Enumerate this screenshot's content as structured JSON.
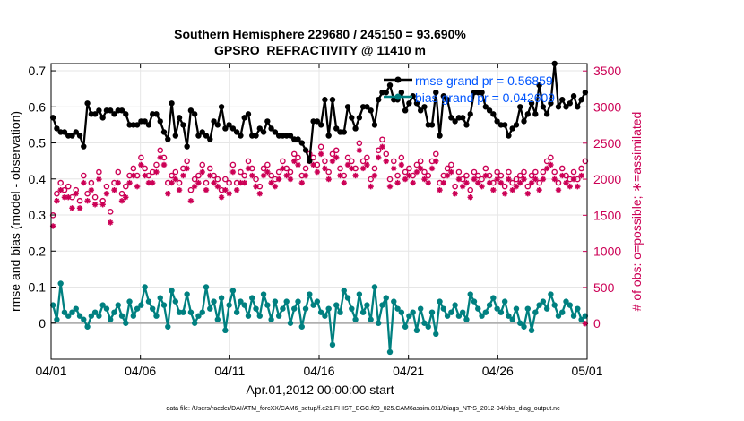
{
  "chart_data": {
    "type": "line",
    "title": "Southern Hemisphere 229680 / 245150 = 93.690%",
    "subtitle": "GPSRO_REFRACTIVITY @ 11410 m",
    "xlabel": "Apr.01,2012 00:00:00 start",
    "ylabel": "rmse and bias (model - observation)",
    "y2label": "# of obs: o=possible; ∗=assimilated",
    "footer": "data file: /Users/raeder/DAI/ATM_forcXX/CAM6_setup/f.e21.FHIST_BGC.f09_025.CAM6assim.011/Diags_NTrS_2012-04/obs_diag_output.nc",
    "x_range_days": [
      0,
      30
    ],
    "ylim": [
      -0.1,
      0.72
    ],
    "y2lim": [
      -494,
      3602
    ],
    "x_tick_labels": [
      "04/01",
      "04/06",
      "04/11",
      "04/16",
      "04/21",
      "04/26",
      "05/01"
    ],
    "x_tick_days": [
      0,
      5,
      10,
      15,
      20,
      25,
      30
    ],
    "y_ticks": [
      0,
      0.1,
      0.2,
      0.3,
      0.4,
      0.5,
      0.6,
      0.7
    ],
    "y2_ticks": [
      0,
      500,
      1000,
      1500,
      2000,
      2500,
      3000,
      3500
    ],
    "grid": true,
    "legend_position": "top-right",
    "colors": {
      "rmse": "#000000",
      "bias": "#008080",
      "counts": "#cc0055",
      "legend_text": "#0055ff",
      "zero_line": "#b0b0b0",
      "grid": "#e6e6e6"
    },
    "series": [
      {
        "name": "rmse grand pr = 0.56859",
        "axis": "left",
        "values": [
          0.57,
          0.54,
          0.53,
          0.53,
          0.52,
          0.52,
          0.53,
          0.52,
          0.49,
          0.61,
          0.58,
          0.58,
          0.59,
          0.57,
          0.59,
          0.59,
          0.58,
          0.59,
          0.59,
          0.58,
          0.55,
          0.55,
          0.55,
          0.56,
          0.56,
          0.55,
          0.58,
          0.58,
          0.56,
          0.53,
          0.51,
          0.61,
          0.52,
          0.57,
          0.55,
          0.49,
          0.59,
          0.58,
          0.52,
          0.53,
          0.52,
          0.51,
          0.56,
          0.55,
          0.6,
          0.54,
          0.55,
          0.54,
          0.53,
          0.52,
          0.57,
          0.58,
          0.52,
          0.52,
          0.54,
          0.53,
          0.56,
          0.54,
          0.53,
          0.52,
          0.52,
          0.52,
          0.52,
          0.51,
          0.51,
          0.5,
          0.48,
          0.45,
          0.56,
          0.56,
          0.55,
          0.62,
          0.52,
          0.62,
          0.54,
          0.53,
          0.53,
          0.6,
          0.57,
          0.54,
          0.57,
          0.6,
          0.6,
          0.59,
          0.55,
          0.62,
          0.64,
          0.64,
          0.66,
          0.62,
          0.62,
          0.64,
          0.59,
          0.61,
          0.63,
          0.61,
          0.59,
          0.6,
          0.55,
          0.55,
          0.64,
          0.52,
          0.63,
          0.62,
          0.57,
          0.56,
          0.57,
          0.57,
          0.55,
          0.58,
          0.64,
          0.64,
          0.64,
          0.6,
          0.59,
          0.58,
          0.56,
          0.55,
          0.55,
          0.52,
          0.54,
          0.55,
          0.6,
          0.56,
          0.58,
          0.61,
          0.58,
          0.66,
          0.6,
          0.58,
          0.61,
          0.72,
          0.6,
          0.62,
          0.6,
          0.61,
          0.63,
          0.6,
          0.62,
          0.64
        ]
      },
      {
        "name": "bias grand pr = 0.042609",
        "axis": "left",
        "values": [
          0.05,
          0.01,
          0.11,
          0.03,
          0.02,
          0.03,
          0.04,
          0.02,
          0.01,
          -0.01,
          0.02,
          0.03,
          0.02,
          0.05,
          0.04,
          0.01,
          0.03,
          0.05,
          0.02,
          0.0,
          0.06,
          0.02,
          0.04,
          0.05,
          0.1,
          0.06,
          0.04,
          0.02,
          0.07,
          0.05,
          -0.01,
          0.09,
          0.06,
          0.03,
          0.03,
          0.08,
          0.03,
          0.0,
          0.02,
          0.03,
          0.1,
          0.04,
          0.06,
          0.01,
          0.07,
          -0.02,
          0.05,
          0.09,
          0.03,
          0.06,
          0.05,
          0.02,
          0.07,
          0.04,
          0.02,
          0.08,
          0.05,
          0.01,
          0.06,
          0.02,
          0.04,
          0.06,
          0.0,
          0.04,
          0.06,
          -0.01,
          0.04,
          0.08,
          0.05,
          0.06,
          0.03,
          0.02,
          0.04,
          -0.06,
          0.05,
          0.03,
          0.09,
          0.07,
          0.04,
          0.01,
          0.08,
          0.03,
          0.05,
          0.01,
          0.1,
          0.0,
          0.05,
          0.07,
          -0.08,
          0.06,
          0.04,
          0.03,
          -0.01,
          0.02,
          0.03,
          -0.02,
          0.04,
          0.0,
          -0.01,
          0.03,
          -0.03,
          0.06,
          0.04,
          0.02,
          0.03,
          0.05,
          0.02,
          0.03,
          0.01,
          0.08,
          0.06,
          0.04,
          0.02,
          0.03,
          0.05,
          0.07,
          0.04,
          0.03,
          0.06,
          0.02,
          0.01,
          0.04,
          0.0,
          -0.01,
          0.04,
          -0.02,
          0.03,
          0.05,
          0.06,
          0.04,
          0.08,
          0.05,
          0.02,
          0.03,
          0.06,
          0.05,
          0.02,
          0.04,
          0.01,
          0.02
        ]
      },
      {
        "name": "possible",
        "axis": "right",
        "marker": "o",
        "values": [
          1500,
          1800,
          1950,
          1850,
          1900,
          1750,
          1850,
          1700,
          2050,
          1800,
          1950,
          1750,
          2100,
          1700,
          1900,
          1550,
          1950,
          2100,
          1800,
          1900,
          2050,
          2150,
          2050,
          2300,
          2150,
          2050,
          2100,
          2200,
          2400,
          2300,
          1950,
          2050,
          2100,
          1950,
          2150,
          2250,
          1850,
          2000,
          2050,
          2200,
          1950,
          2150,
          2050,
          2000,
          1850,
          2000,
          1950,
          2200,
          1950,
          2100,
          2050,
          2250,
          2150,
          2000,
          1900,
          2150,
          2200,
          2050,
          2000,
          2100,
          2250,
          2150,
          2100,
          2350,
          2300,
          2050,
          2150,
          2350,
          2300,
          2200,
          2450,
          2250,
          2100,
          2350,
          2400,
          2150,
          2050,
          2300,
          2250,
          2150,
          2500,
          2250,
          2300,
          2000,
          2150,
          2400,
          2550,
          2350,
          2000,
          2250,
          2050,
          2300,
          2100,
          2150,
          2050,
          2200,
          2250,
          2100,
          2050,
          2250,
          2350,
          1950,
          2050,
          2150,
          2200,
          1900,
          2100,
          2000,
          2050,
          1850,
          2100,
          2050,
          2000,
          2150,
          2050,
          1950,
          2100,
          2050,
          1900,
          2100,
          1950,
          2000,
          2050,
          2100,
          1900,
          2050,
          2100,
          1950,
          2100,
          2250,
          2300,
          2100,
          1950,
          2150,
          2050,
          2000,
          2100,
          2000,
          2150,
          2250
        ]
      },
      {
        "name": "assimilated",
        "axis": "right",
        "marker": "*",
        "values": [
          1350,
          1700,
          1850,
          1750,
          1750,
          1600,
          1800,
          1600,
          1950,
          1700,
          1850,
          1650,
          2000,
          1650,
          1800,
          1400,
          1850,
          1950,
          1700,
          1750,
          1950,
          2050,
          1900,
          2200,
          2050,
          1950,
          1950,
          2100,
          2300,
          2200,
          1800,
          1950,
          2000,
          1850,
          2050,
          2150,
          1700,
          1900,
          1950,
          2100,
          1850,
          2050,
          1950,
          1900,
          1750,
          1850,
          1800,
          2100,
          1850,
          1950,
          1950,
          2150,
          2050,
          1900,
          1800,
          2050,
          2100,
          1950,
          1900,
          2000,
          2150,
          2050,
          2000,
          2250,
          2200,
          1950,
          2050,
          2250,
          2200,
          2100,
          2350,
          2150,
          2000,
          2250,
          2300,
          2050,
          1950,
          2200,
          2150,
          2050,
          2400,
          2150,
          2200,
          1900,
          2050,
          2300,
          2450,
          2250,
          1900,
          2150,
          1950,
          2200,
          2000,
          2050,
          1950,
          2100,
          2150,
          2000,
          1950,
          2150,
          2250,
          1850,
          1950,
          2050,
          2100,
          1800,
          2000,
          1900,
          1950,
          1750,
          2000,
          1950,
          1900,
          2050,
          1950,
          1850,
          2000,
          1950,
          1800,
          2000,
          1850,
          1900,
          1950,
          2000,
          1800,
          1950,
          2000,
          1850,
          2000,
          2150,
          2200,
          2000,
          1850,
          2050,
          1950,
          1900,
          2000,
          1900,
          2050,
          0
        ]
      }
    ]
  }
}
